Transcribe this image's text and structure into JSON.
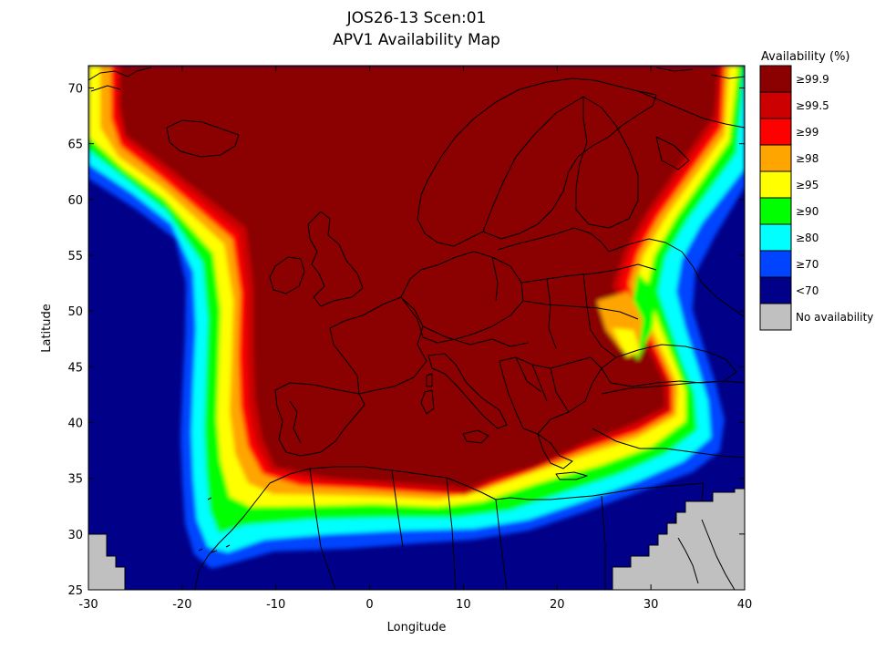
{
  "title": "JOS26-13 Scen:01",
  "subtitle": "APV1 Availability Map",
  "x_axis": {
    "label": "Longitude",
    "min": -30,
    "max": 40,
    "ticks": [
      -30,
      -20,
      -10,
      0,
      10,
      20,
      30,
      40
    ]
  },
  "y_axis": {
    "label": "Latitude",
    "min": 25,
    "max": 72,
    "ticks": [
      25,
      30,
      35,
      40,
      45,
      50,
      55,
      60,
      65,
      70
    ]
  },
  "legend": {
    "title": "Availability (%)",
    "items": [
      {
        "label": "≥99.9",
        "color": "#8b0000"
      },
      {
        "label": "≥99.5",
        "color": "#cc0000"
      },
      {
        "label": "≥99",
        "color": "#ff0000"
      },
      {
        "label": "≥98",
        "color": "#ffa500"
      },
      {
        "label": "≥95",
        "color": "#ffff00"
      },
      {
        "label": "≥90",
        "color": "#00ff00"
      },
      {
        "label": "≥80",
        "color": "#00ffff"
      },
      {
        "label": "≥70",
        "color": "#0044ff"
      },
      {
        "label": "<70",
        "color": "#000088"
      },
      {
        "label": "No availability",
        "color": "#c0c0c0"
      }
    ]
  }
}
